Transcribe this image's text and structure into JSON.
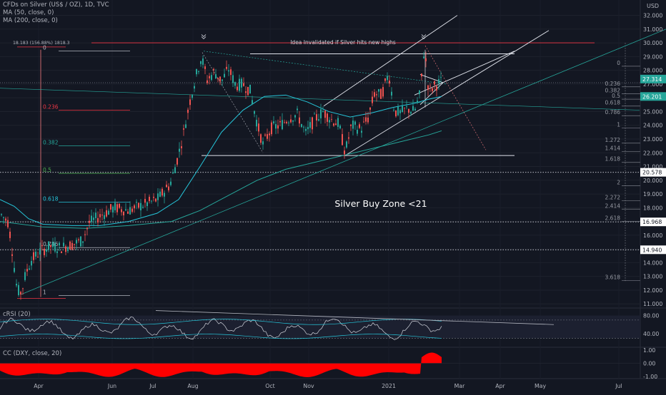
{
  "legend": {
    "symbol_line": "CFDs on Silver (US$ / OZ), 1D, TVC",
    "ma50_line": "MA (50, close, 0)",
    "ma200_line": "MA (200, close, 0)"
  },
  "currency": "USD",
  "annotations": {
    "invalidated": "Idea Invalidated if Silver hits new highs",
    "buy_zone": "Silver Buy Zone <21",
    "fib_header": "18.183 (156.88%) 1818.3"
  },
  "panels": {
    "crsi_label": "cRSI (20)",
    "cc_label": "CC (DXY, close, 20)"
  },
  "chart_data": {
    "type": "candlestick",
    "x_axis_labels": [
      "Apr",
      "Jun",
      "Jul",
      "Aug",
      "Oct",
      "Nov",
      "2021",
      "Mar",
      "Apr",
      "May",
      "Jul"
    ],
    "price_ticks": [
      "32.000",
      "31.000",
      "30.000",
      "29.000",
      "28.000",
      "27.000",
      "26.000",
      "25.000",
      "24.000",
      "23.000",
      "22.000",
      "21.000",
      "20.000",
      "19.000",
      "18.000",
      "17.000",
      "16.000",
      "15.000",
      "14.000",
      "13.000",
      "12.000",
      "11.000"
    ],
    "price_range": [
      10.7,
      32.6
    ],
    "price_badges": [
      {
        "value": "27.314",
        "color": "#26a69a"
      },
      {
        "value": "26.201",
        "color": "#26a69a"
      },
      {
        "value": "20.578",
        "color": "#ffffff"
      },
      {
        "value": "16.968",
        "color": "#ffffff"
      },
      {
        "value": "14.940",
        "color": "#ffffff"
      }
    ],
    "fib_left": [
      {
        "label": "0",
        "price": 29.4,
        "color": "#b2b5be"
      },
      {
        "label": "0.236",
        "price": 25.1,
        "color": "#f23645"
      },
      {
        "label": "0.382",
        "price": 22.5,
        "color": "#26a69a"
      },
      {
        "label": "0.5",
        "price": 20.5,
        "color": "#4caf50"
      },
      {
        "label": "0.618",
        "price": 18.4,
        "color": "#26c6da"
      },
      {
        "label": "0.786",
        "price": 15.1,
        "color": "#b2b5be"
      },
      {
        "label": "1",
        "price": 11.6,
        "color": "#b2b5be"
      }
    ],
    "fib_right": [
      {
        "label": "0",
        "price": 28.3
      },
      {
        "label": "0.236",
        "price": 26.8
      },
      {
        "label": "0.382",
        "price": 26.3
      },
      {
        "label": "0.5",
        "price": 25.9
      },
      {
        "label": "0.618",
        "price": 25.4
      },
      {
        "label": "0.786",
        "price": 24.7
      },
      {
        "label": "1",
        "price": 23.8
      },
      {
        "label": "1.272",
        "price": 22.7
      },
      {
        "label": "1.414",
        "price": 22.1
      },
      {
        "label": "1.618",
        "price": 21.3
      },
      {
        "label": "2",
        "price": 19.6
      },
      {
        "label": "2.272",
        "price": 18.5
      },
      {
        "label": "2.414",
        "price": 17.9
      },
      {
        "label": "2.618",
        "price": 17.0
      },
      {
        "label": "3.618",
        "price": 12.7
      }
    ],
    "crsi": {
      "ticks": [
        "80.00",
        "40.00"
      ],
      "range": [
        10,
        95
      ]
    },
    "cc": {
      "ticks": [
        "1.00",
        "0.00",
        "-1.00"
      ],
      "range": [
        -1.15,
        1.15
      ]
    }
  }
}
